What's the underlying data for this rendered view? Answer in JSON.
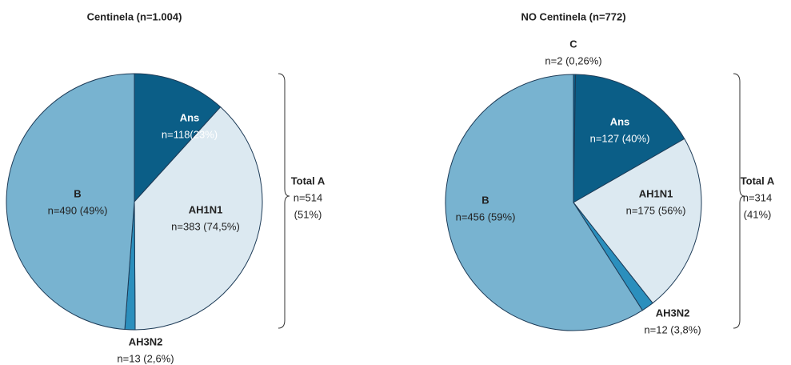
{
  "chart_data": [
    {
      "type": "pie",
      "title": "Centinela (n=1.004)",
      "categories": [
        "Ans",
        "AH1N1",
        "AH3N2",
        "B"
      ],
      "values": [
        118,
        383,
        13,
        490
      ],
      "value_labels": [
        "n=118(23%)",
        "n=383 (74,5%)",
        "n=13 (2,6%)",
        "n=490 (49%)"
      ],
      "colors": [
        "#0b5e87",
        "#dce9f1",
        "#2b8fbd",
        "#78b3d0"
      ],
      "annotation": [
        "Total A",
        "n=514",
        "(51%)"
      ]
    },
    {
      "type": "pie",
      "title": "NO Centinela (n=772)",
      "categories": [
        "C",
        "Ans",
        "AH1N1",
        "AH3N2",
        "B"
      ],
      "values": [
        2,
        127,
        175,
        12,
        456
      ],
      "value_labels": [
        "n=2 (0,26%)",
        "n=127 (40%)",
        "n=175 (56%)",
        "n=12 (3,8%)",
        "n=456 (59%)"
      ],
      "colors": [
        "#0b5e87",
        "#0b5e87",
        "#dce9f1",
        "#2b8fbd",
        "#78b3d0"
      ],
      "annotation": [
        "Total A",
        "n=314",
        "(41%)"
      ]
    }
  ]
}
